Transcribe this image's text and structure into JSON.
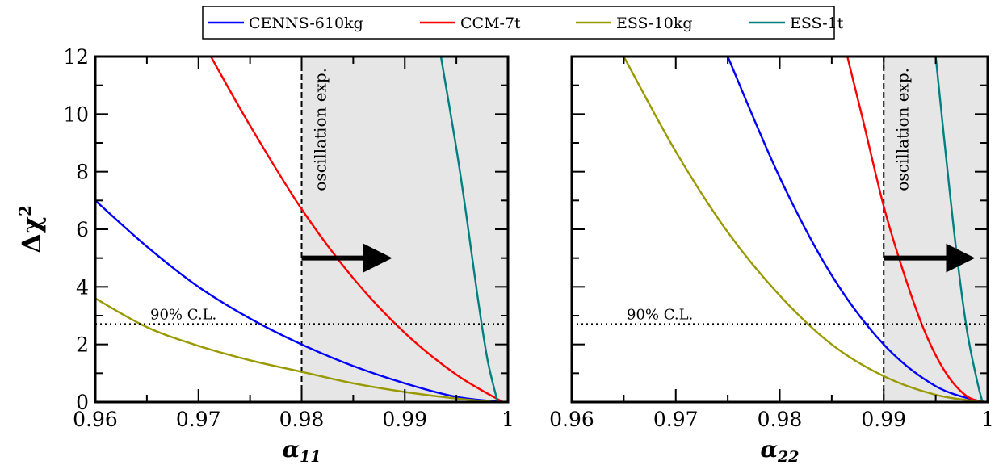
{
  "chart_data": [
    {
      "type": "line",
      "xlabel": "α",
      "xlabel_sub": "11",
      "ylabel": "Δχ",
      "ylabel_sup": "2",
      "xlim": [
        0.96,
        1.0
      ],
      "ylim": [
        0,
        12
      ],
      "xticks": [
        "0.96",
        "0.97",
        "0.98",
        "0.99",
        "1"
      ],
      "yticks": [
        "0",
        "2",
        "4",
        "6",
        "8",
        "10",
        "12"
      ],
      "shaded_region": {
        "x_start": 0.98,
        "x_end": 1.0,
        "color": "#e6e6e6"
      },
      "boundary_line_x": 0.98,
      "annotation_text": "oscillation exp.",
      "arrow": {
        "x_start": 0.98,
        "x_end": 0.988,
        "y": 5
      },
      "cl_line_y": 2.71,
      "cl_label": "90% C.L.",
      "series": [
        {
          "name": "CENNS-610kg",
          "color": "#0000ff",
          "x": [
            0.96,
            0.965,
            0.97,
            0.975,
            0.98,
            0.985,
            0.99,
            0.995,
            0.9995
          ],
          "y": [
            7.0,
            5.4,
            4.0,
            2.9,
            2.0,
            1.25,
            0.65,
            0.18,
            0.0
          ]
        },
        {
          "name": "CCM-7t",
          "color": "#ff0000",
          "x": [
            0.9712,
            0.975,
            0.98,
            0.985,
            0.99,
            0.995,
            0.9995
          ],
          "y": [
            12.0,
            9.6,
            6.7,
            4.3,
            2.4,
            0.95,
            0.0
          ]
        },
        {
          "name": "ESS-10kg",
          "color": "#999900",
          "x": [
            0.96,
            0.965,
            0.97,
            0.975,
            0.98,
            0.985,
            0.99,
            0.995,
            0.999
          ],
          "y": [
            3.6,
            2.6,
            1.95,
            1.45,
            1.05,
            0.65,
            0.35,
            0.12,
            0.0
          ]
        },
        {
          "name": "ESS-1t",
          "color": "#008080",
          "x": [
            0.9935,
            0.995,
            0.996,
            0.997,
            0.998,
            0.999
          ],
          "y": [
            12.0,
            8.8,
            6.4,
            3.8,
            1.5,
            0.0
          ]
        }
      ]
    },
    {
      "type": "line",
      "xlabel": "α",
      "xlabel_sub": "22",
      "xlim": [
        0.96,
        1.0
      ],
      "ylim": [
        0,
        12
      ],
      "xticks": [
        "0.96",
        "0.97",
        "0.98",
        "0.99",
        "1"
      ],
      "shaded_region": {
        "x_start": 0.99,
        "x_end": 1.0,
        "color": "#e6e6e6"
      },
      "boundary_line_x": 0.99,
      "annotation_text": "oscillation exp.",
      "arrow": {
        "x_start": 0.99,
        "x_end": 0.998,
        "y": 5
      },
      "cl_line_y": 2.71,
      "cl_label": "90% C.L.",
      "series": [
        {
          "name": "CENNS-610kg",
          "color": "#0000ff",
          "x": [
            0.975,
            0.98,
            0.985,
            0.99,
            0.995,
            0.9995
          ],
          "y": [
            12.0,
            7.8,
            4.4,
            2.0,
            0.55,
            0.0
          ]
        },
        {
          "name": "CCM-7t",
          "color": "#ff0000",
          "x": [
            0.9865,
            0.988,
            0.99,
            0.992,
            0.994,
            0.996,
            0.998,
            0.9998
          ],
          "y": [
            12.0,
            9.8,
            6.8,
            4.4,
            2.4,
            1.0,
            0.2,
            0.0
          ]
        },
        {
          "name": "ESS-10kg",
          "color": "#999900",
          "x": [
            0.965,
            0.97,
            0.975,
            0.98,
            0.985,
            0.99,
            0.995,
            0.9995
          ],
          "y": [
            12.0,
            8.7,
            5.9,
            3.7,
            2.0,
            0.9,
            0.25,
            0.0
          ]
        },
        {
          "name": "ESS-1t",
          "color": "#008080",
          "x": [
            0.995,
            0.996,
            0.997,
            0.998,
            0.999,
            0.9995
          ],
          "y": [
            12.0,
            8.5,
            5.2,
            2.5,
            0.7,
            0.0
          ]
        }
      ]
    }
  ],
  "legend": {
    "placement": "top-center",
    "entries": [
      {
        "label": "CENNS-610kg",
        "color": "#0000ff"
      },
      {
        "label": "CCM-7t",
        "color": "#ff0000"
      },
      {
        "label": "ESS-10kg",
        "color": "#999900"
      },
      {
        "label": "ESS-1t",
        "color": "#008080"
      }
    ]
  }
}
